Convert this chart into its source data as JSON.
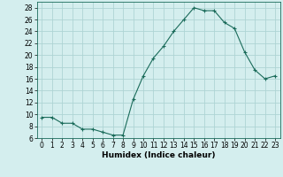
{
  "x": [
    0,
    1,
    2,
    3,
    4,
    5,
    6,
    7,
    8,
    9,
    10,
    11,
    12,
    13,
    14,
    15,
    16,
    17,
    18,
    19,
    20,
    21,
    22,
    23
  ],
  "y": [
    9.5,
    9.5,
    8.5,
    8.5,
    7.5,
    7.5,
    7.0,
    6.5,
    6.5,
    12.5,
    16.5,
    19.5,
    21.5,
    24.0,
    26.0,
    28.0,
    27.5,
    27.5,
    25.5,
    24.5,
    20.5,
    17.5,
    16.0,
    16.5
  ],
  "title": "",
  "xlabel": "Humidex (Indice chaleur)",
  "ylabel": "",
  "xlim": [
    -0.5,
    23.5
  ],
  "ylim": [
    6,
    29
  ],
  "yticks": [
    6,
    8,
    10,
    12,
    14,
    16,
    18,
    20,
    22,
    24,
    26,
    28
  ],
  "xticks": [
    0,
    1,
    2,
    3,
    4,
    5,
    6,
    7,
    8,
    9,
    10,
    11,
    12,
    13,
    14,
    15,
    16,
    17,
    18,
    19,
    20,
    21,
    22,
    23
  ],
  "line_color": "#1a6b5a",
  "marker": "+",
  "bg_color": "#d4eeee",
  "grid_color": "#aed4d4",
  "label_fontsize": 6.5,
  "tick_fontsize": 5.5
}
